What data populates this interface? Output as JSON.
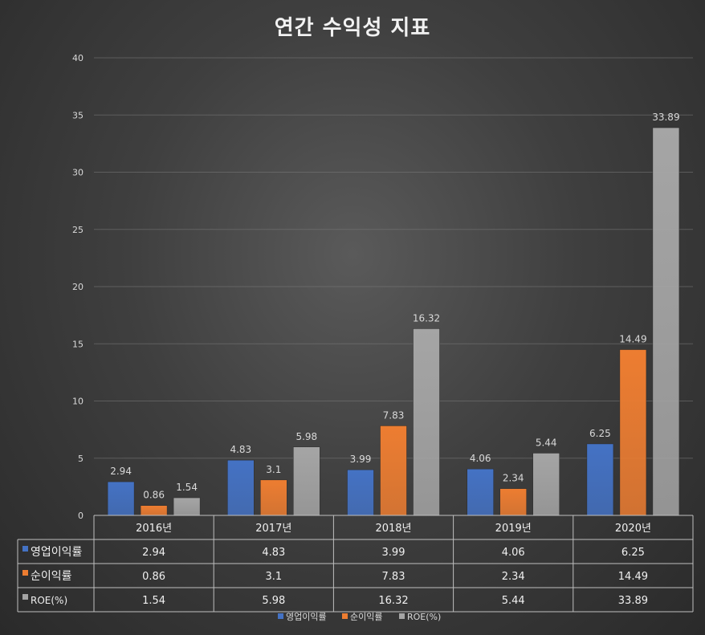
{
  "chart_data": {
    "type": "bar",
    "title": "연간 수익성 지표",
    "categories": [
      "2016년",
      "2017년",
      "2018년",
      "2019년",
      "2020년"
    ],
    "series": [
      {
        "name": "영업이익률",
        "values": [
          2.94,
          4.83,
          3.99,
          4.06,
          6.25
        ],
        "color": "#4472c4"
      },
      {
        "name": "순이익률",
        "values": [
          0.86,
          3.1,
          7.83,
          2.34,
          14.49
        ],
        "color": "#ed7d31"
      },
      {
        "name": "ROE(%)",
        "values": [
          1.54,
          5.98,
          16.32,
          5.44,
          33.89
        ],
        "color": "#a5a5a5"
      }
    ],
    "ylim": [
      0,
      40
    ],
    "yticks": [
      0,
      5,
      10,
      15,
      20,
      25,
      30,
      35,
      40
    ],
    "grid": true,
    "legend": "bottom",
    "data_table": true,
    "data_labels": true
  }
}
